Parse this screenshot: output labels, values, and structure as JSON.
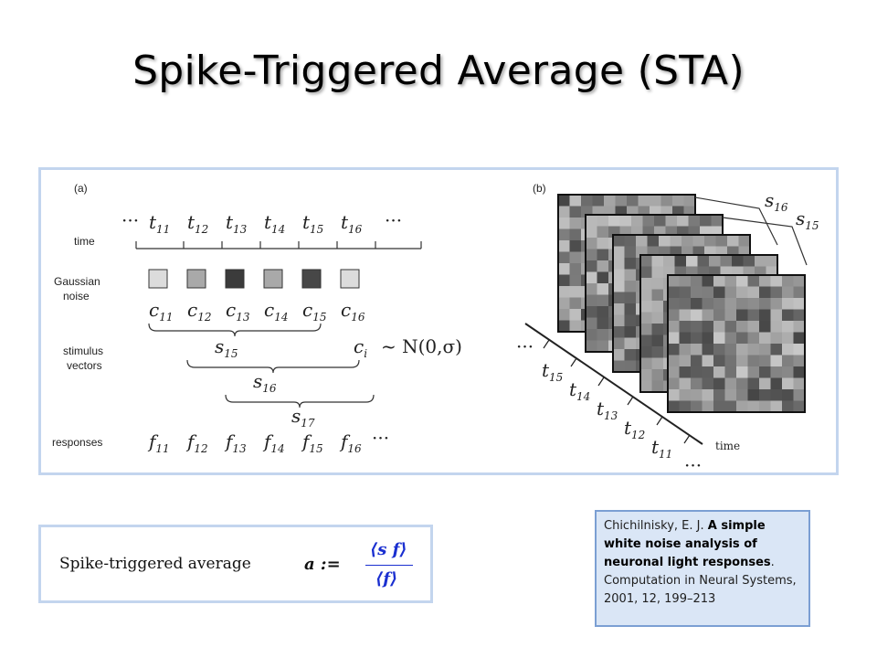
{
  "slide": {
    "title": "Spike-Triggered Average (STA)"
  },
  "panel_a": {
    "tag": "(a)",
    "row_labels": {
      "time": "time",
      "noise_1": "Gaussian",
      "noise_2": "noise",
      "stim_1": "stimulus",
      "stim_2": "vectors",
      "responses": "responses"
    },
    "times": [
      "11",
      "12",
      "13",
      "14",
      "15",
      "16"
    ],
    "noise_squares": [
      "#dcdcdc",
      "#a9a9a9",
      "#3b3b3b",
      "#a9a9a9",
      "#474747",
      "#dcdcdc"
    ],
    "c_sub": [
      "11",
      "12",
      "13",
      "14",
      "15",
      "16"
    ],
    "stim_sub": [
      "15",
      "16",
      "17"
    ],
    "f_sub": [
      "11",
      "12",
      "13",
      "14",
      "15",
      "16"
    ],
    "dist_formula": "~ N(0,σ)",
    "ellipsis": "···"
  },
  "panel_b": {
    "tag": "(b)",
    "frame_labels": [
      "16",
      "15"
    ],
    "axis_times": [
      "15",
      "14",
      "13",
      "12",
      "11"
    ],
    "axis_label": "time",
    "ellipsis": "···"
  },
  "formula": {
    "text": "Spike-triggered average",
    "lhs": "a :=",
    "numerator": "⟨s f⟩",
    "denominator": "⟨f⟩"
  },
  "citation": {
    "authors": "Chichilnisky, E. J. ",
    "title": "A simple white noise analysis of neuronal light responses",
    "rest": ". Computation in Neural Systems, 2001, 12, 199–213"
  }
}
